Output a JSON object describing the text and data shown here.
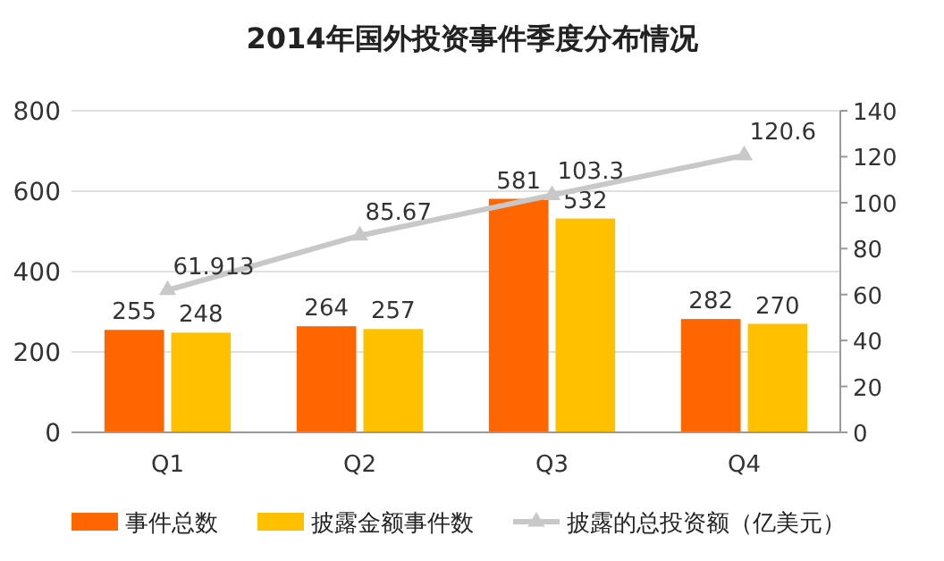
{
  "chart_data": {
    "type": "bar",
    "title": "2014年国外投资事件季度分布情况",
    "categories": [
      "Q1",
      "Q2",
      "Q3",
      "Q4"
    ],
    "series": [
      {
        "name": "事件总数",
        "color": "#ff6600",
        "values": [
          255,
          264,
          581,
          282
        ]
      },
      {
        "name": "披露金额事件数",
        "color": "#ffc000",
        "values": [
          248,
          257,
          532,
          270
        ]
      },
      {
        "name": "披露的总投资额（亿美元）",
        "color": "#c8c8c8",
        "type": "line",
        "axis": "y2",
        "marker": "triangle",
        "values": [
          61.913,
          85.67,
          103.3,
          120.6
        ]
      }
    ],
    "ylim": [
      0,
      800
    ],
    "yticks": [
      0,
      200,
      400,
      600,
      800
    ],
    "y2lim": [
      0,
      140
    ],
    "y2ticks": [
      0,
      20,
      40,
      60,
      80,
      100,
      120,
      140
    ],
    "grid": "y",
    "legend": "bottom",
    "data_labels": true
  }
}
